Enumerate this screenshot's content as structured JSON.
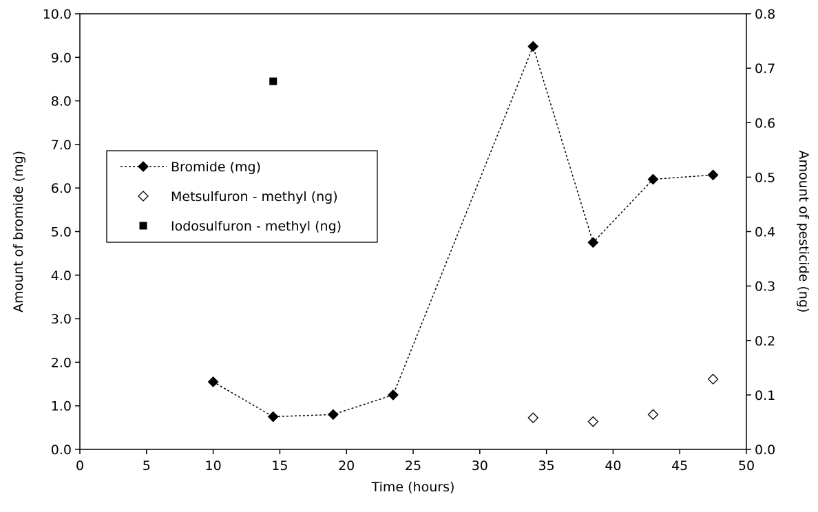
{
  "chart_data": {
    "type": "scatter",
    "xlabel": "Time (hours)",
    "ylabel_left": "Amount of bromide (mg)",
    "ylabel_right": "Amount of pesticide (ng)",
    "xlim": [
      0,
      50
    ],
    "ylim_left": [
      0,
      10
    ],
    "ylim_right": [
      0,
      0.8
    ],
    "x_ticks": [
      0,
      5,
      10,
      15,
      20,
      25,
      30,
      35,
      40,
      45,
      50
    ],
    "y_left_ticks": [
      "0.0",
      "1.0",
      "2.0",
      "3.0",
      "4.0",
      "5.0",
      "6.0",
      "7.0",
      "8.0",
      "9.0",
      "10.0"
    ],
    "y_right_ticks": [
      "0.0",
      "0.1",
      "0.2",
      "0.3",
      "0.4",
      "0.5",
      "0.6",
      "0.7",
      "0.8"
    ],
    "grid": false,
    "legend_position": "left",
    "series": [
      {
        "name": "Bromide (mg)",
        "axis": "left",
        "marker": "filled-diamond",
        "line": "dotted",
        "x": [
          10,
          14.5,
          19,
          23.5,
          34,
          38.5,
          43,
          47.5
        ],
        "y": [
          1.55,
          0.75,
          0.8,
          1.25,
          9.25,
          4.75,
          6.2,
          6.3
        ]
      },
      {
        "name": "Metsulfuron - methyl (ng)",
        "axis": "right",
        "marker": "open-diamond",
        "line": "none",
        "x": [
          34,
          38.5,
          43,
          47.5
        ],
        "y": [
          0.058,
          0.051,
          0.064,
          0.129
        ]
      },
      {
        "name": "Iodosulfuron - methyl (ng)",
        "axis": "right",
        "marker": "filled-square",
        "line": "none",
        "x": [
          14.5
        ],
        "y": [
          0.676
        ]
      }
    ]
  }
}
